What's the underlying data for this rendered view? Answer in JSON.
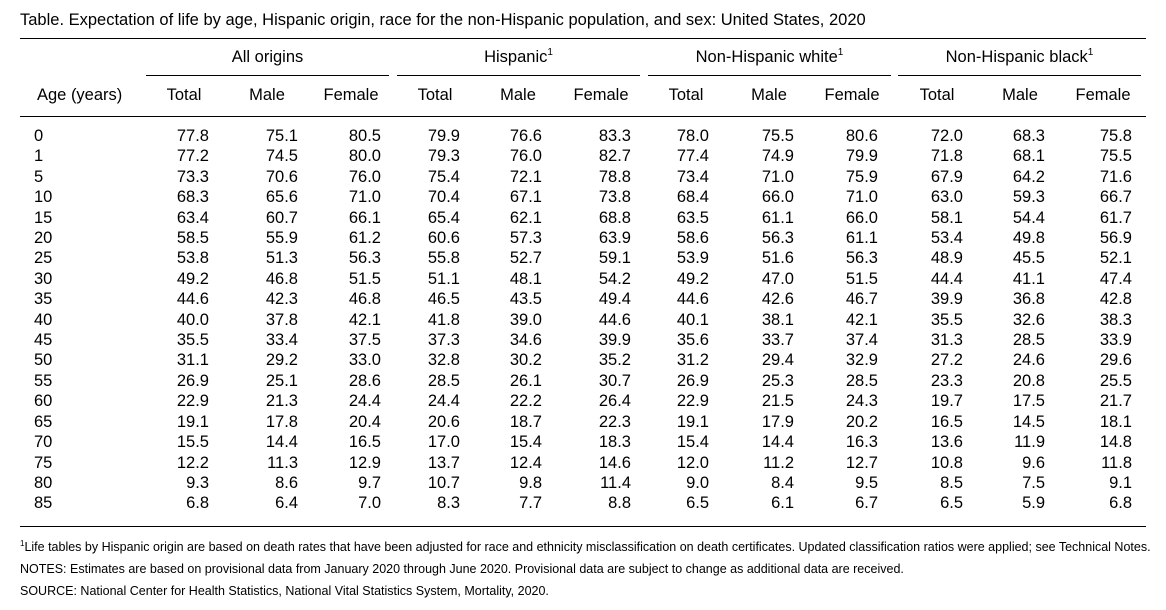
{
  "title": "Table. Expectation of life by age, Hispanic origin, race for the non-Hispanic population, and sex: United States, 2020",
  "row_header": "Age (years)",
  "groups": [
    {
      "label": "All origins",
      "sup": ""
    },
    {
      "label": "Hispanic",
      "sup": "1"
    },
    {
      "label": "Non-Hispanic white",
      "sup": "1"
    },
    {
      "label": "Non-Hispanic black",
      "sup": "1"
    }
  ],
  "subcolumns": [
    "Total",
    "Male",
    "Female"
  ],
  "rows": [
    {
      "age": "0",
      "values": [
        "77.8",
        "75.1",
        "80.5",
        "79.9",
        "76.6",
        "83.3",
        "78.0",
        "75.5",
        "80.6",
        "72.0",
        "68.3",
        "75.8"
      ]
    },
    {
      "age": "1",
      "values": [
        "77.2",
        "74.5",
        "80.0",
        "79.3",
        "76.0",
        "82.7",
        "77.4",
        "74.9",
        "79.9",
        "71.8",
        "68.1",
        "75.5"
      ]
    },
    {
      "age": "5",
      "values": [
        "73.3",
        "70.6",
        "76.0",
        "75.4",
        "72.1",
        "78.8",
        "73.4",
        "71.0",
        "75.9",
        "67.9",
        "64.2",
        "71.6"
      ]
    },
    {
      "age": "10",
      "values": [
        "68.3",
        "65.6",
        "71.0",
        "70.4",
        "67.1",
        "73.8",
        "68.4",
        "66.0",
        "71.0",
        "63.0",
        "59.3",
        "66.7"
      ]
    },
    {
      "age": "15",
      "values": [
        "63.4",
        "60.7",
        "66.1",
        "65.4",
        "62.1",
        "68.8",
        "63.5",
        "61.1",
        "66.0",
        "58.1",
        "54.4",
        "61.7"
      ]
    },
    {
      "age": "20",
      "values": [
        "58.5",
        "55.9",
        "61.2",
        "60.6",
        "57.3",
        "63.9",
        "58.6",
        "56.3",
        "61.1",
        "53.4",
        "49.8",
        "56.9"
      ]
    },
    {
      "age": "25",
      "values": [
        "53.8",
        "51.3",
        "56.3",
        "55.8",
        "52.7",
        "59.1",
        "53.9",
        "51.6",
        "56.3",
        "48.9",
        "45.5",
        "52.1"
      ]
    },
    {
      "age": "30",
      "values": [
        "49.2",
        "46.8",
        "51.5",
        "51.1",
        "48.1",
        "54.2",
        "49.2",
        "47.0",
        "51.5",
        "44.4",
        "41.1",
        "47.4"
      ]
    },
    {
      "age": "35",
      "values": [
        "44.6",
        "42.3",
        "46.8",
        "46.5",
        "43.5",
        "49.4",
        "44.6",
        "42.6",
        "46.7",
        "39.9",
        "36.8",
        "42.8"
      ]
    },
    {
      "age": "40",
      "values": [
        "40.0",
        "37.8",
        "42.1",
        "41.8",
        "39.0",
        "44.6",
        "40.1",
        "38.1",
        "42.1",
        "35.5",
        "32.6",
        "38.3"
      ]
    },
    {
      "age": "45",
      "values": [
        "35.5",
        "33.4",
        "37.5",
        "37.3",
        "34.6",
        "39.9",
        "35.6",
        "33.7",
        "37.4",
        "31.3",
        "28.5",
        "33.9"
      ]
    },
    {
      "age": "50",
      "values": [
        "31.1",
        "29.2",
        "33.0",
        "32.8",
        "30.2",
        "35.2",
        "31.2",
        "29.4",
        "32.9",
        "27.2",
        "24.6",
        "29.6"
      ]
    },
    {
      "age": "55",
      "values": [
        "26.9",
        "25.1",
        "28.6",
        "28.5",
        "26.1",
        "30.7",
        "26.9",
        "25.3",
        "28.5",
        "23.3",
        "20.8",
        "25.5"
      ]
    },
    {
      "age": "60",
      "values": [
        "22.9",
        "21.3",
        "24.4",
        "24.4",
        "22.2",
        "26.4",
        "22.9",
        "21.5",
        "24.3",
        "19.7",
        "17.5",
        "21.7"
      ]
    },
    {
      "age": "65",
      "values": [
        "19.1",
        "17.8",
        "20.4",
        "20.6",
        "18.7",
        "22.3",
        "19.1",
        "17.9",
        "20.2",
        "16.5",
        "14.5",
        "18.1"
      ]
    },
    {
      "age": "70",
      "values": [
        "15.5",
        "14.4",
        "16.5",
        "17.0",
        "15.4",
        "18.3",
        "15.4",
        "14.4",
        "16.3",
        "13.6",
        "11.9",
        "14.8"
      ]
    },
    {
      "age": "75",
      "values": [
        "12.2",
        "11.3",
        "12.9",
        "13.7",
        "12.4",
        "14.6",
        "12.0",
        "11.2",
        "12.7",
        "10.8",
        "9.6",
        "11.8"
      ]
    },
    {
      "age": "80",
      "values": [
        "9.3",
        "8.6",
        "9.7",
        "10.7",
        "9.8",
        "11.4",
        "9.0",
        "8.4",
        "9.5",
        "8.5",
        "7.5",
        "9.1"
      ]
    },
    {
      "age": "85",
      "values": [
        "6.8",
        "6.4",
        "7.0",
        "8.3",
        "7.7",
        "8.8",
        "6.5",
        "6.1",
        "6.7",
        "6.5",
        "5.9",
        "6.8"
      ]
    }
  ],
  "footnote": {
    "sup": "1",
    "text": "Life tables by Hispanic origin are based on death rates that have been adjusted for race and ethnicity misclassification on death certificates. Updated classification ratios were applied; see Technical Notes."
  },
  "notes": "NOTES: Estimates are based on provisional data from January 2020 through June 2020. Provisional data are subject to change as additional data are received.",
  "source": "SOURCE: National Center for Health Statistics, National Vital Statistics System, Mortality, 2020."
}
